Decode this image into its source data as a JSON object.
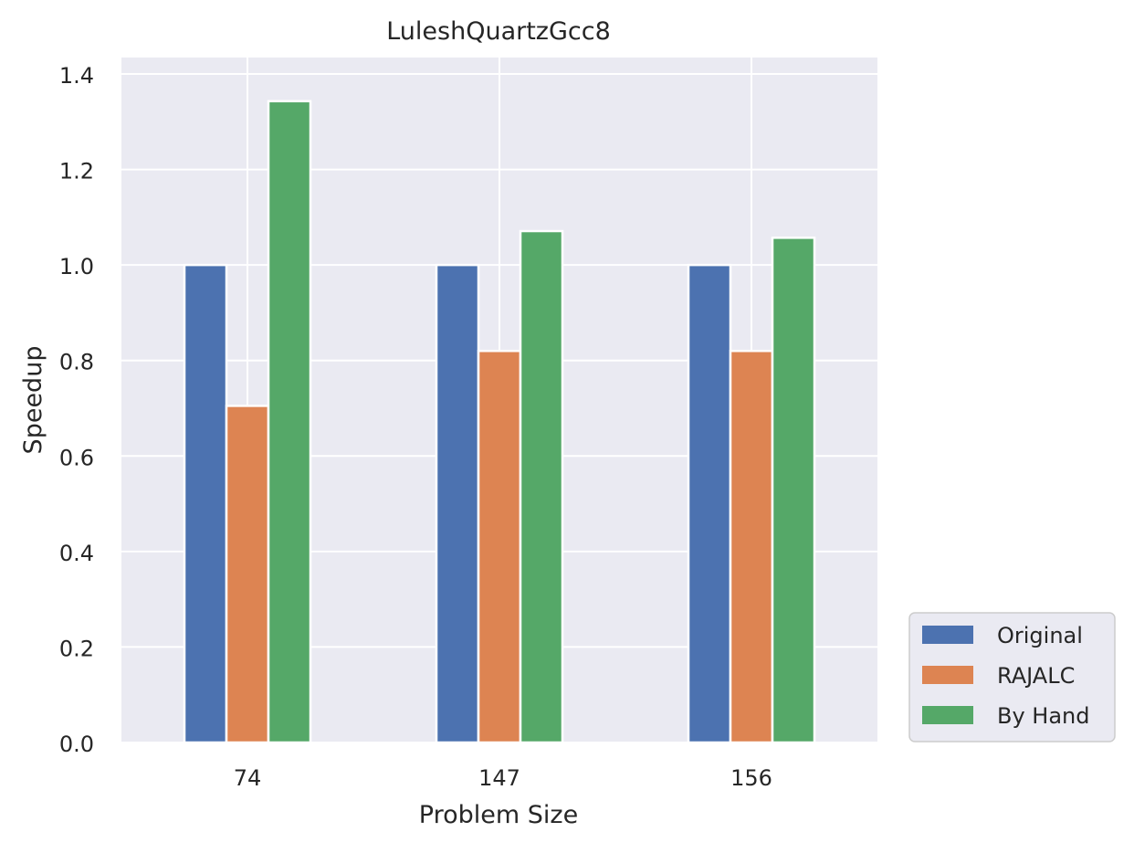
{
  "chart_data": {
    "type": "bar",
    "title": "LuleshQuartzGcc8",
    "xlabel": "Problem Size",
    "ylabel": "Speedup",
    "categories": [
      "74",
      "147",
      "156"
    ],
    "series": [
      {
        "name": "Original",
        "values": [
          1.0,
          1.0,
          1.0
        ]
      },
      {
        "name": "RAJALC",
        "values": [
          0.705,
          0.82,
          0.82
        ]
      },
      {
        "name": "By Hand",
        "values": [
          1.343,
          1.071,
          1.057
        ]
      }
    ],
    "ylim": [
      0,
      1.4
    ],
    "yticks": [
      "0.0",
      "0.2",
      "0.4",
      "0.6",
      "0.8",
      "1.0",
      "1.2",
      "1.4"
    ],
    "grid": true,
    "legend": "outside-bottom-right"
  },
  "colors": {
    "series": [
      "#4c72b0",
      "#dd8452",
      "#55a868"
    ],
    "plot_background": "#eaeaf2",
    "grid": "#ffffff"
  }
}
